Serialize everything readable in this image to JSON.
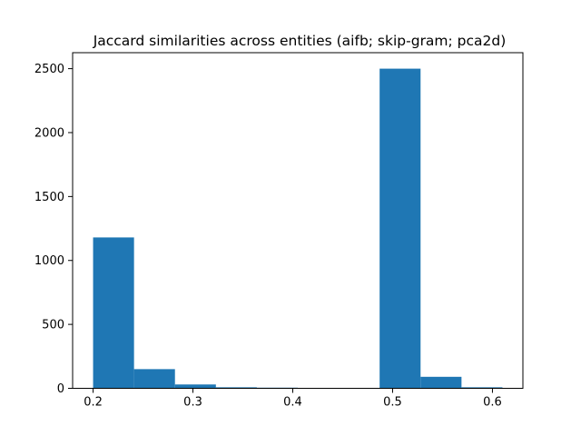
{
  "chart_data": {
    "type": "bar",
    "title": "Jaccard similarities across entities (aifb; skip-gram; pca2d)",
    "xlabel": "",
    "ylabel": "",
    "bins": [
      {
        "start": 0.2,
        "end": 0.241,
        "count": 1180
      },
      {
        "start": 0.241,
        "end": 0.282,
        "count": 150
      },
      {
        "start": 0.282,
        "end": 0.323,
        "count": 30
      },
      {
        "start": 0.323,
        "end": 0.364,
        "count": 8
      },
      {
        "start": 0.364,
        "end": 0.405,
        "count": 5
      },
      {
        "start": 0.405,
        "end": 0.446,
        "count": 0
      },
      {
        "start": 0.446,
        "end": 0.487,
        "count": 0
      },
      {
        "start": 0.487,
        "end": 0.528,
        "count": 2500
      },
      {
        "start": 0.528,
        "end": 0.569,
        "count": 90
      },
      {
        "start": 0.569,
        "end": 0.61,
        "count": 8
      }
    ],
    "xlim": [
      0.1795,
      0.6305
    ],
    "ylim": [
      0,
      2625
    ],
    "x_ticks": [
      "0.2",
      "0.3",
      "0.4",
      "0.5",
      "0.6"
    ],
    "x_tick_values": [
      0.2,
      0.3,
      0.4,
      0.5,
      0.6
    ],
    "y_ticks": [
      "0",
      "500",
      "1000",
      "1500",
      "2000",
      "2500"
    ],
    "y_tick_values": [
      0,
      500,
      1000,
      1500,
      2000,
      2500
    ],
    "bar_color": "#1f77b4",
    "grid": false,
    "legend": "none"
  }
}
